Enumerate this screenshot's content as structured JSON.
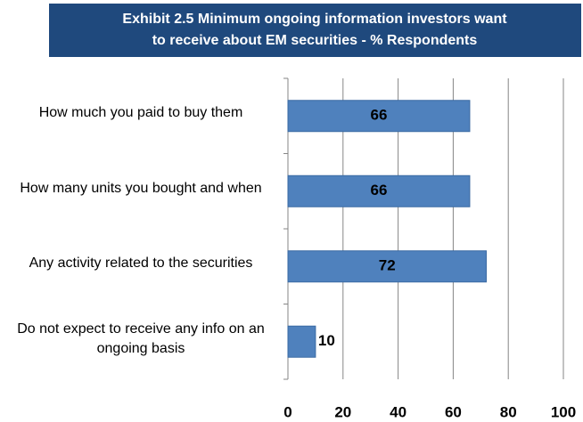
{
  "chart_data": {
    "type": "bar",
    "orientation": "horizontal",
    "title": [
      "Exhibit 2.5  Minimum ongoing information investors want",
      "to receive about EM securities - % Respondents"
    ],
    "categories": [
      "How much you paid to buy them",
      "How many units you bought and when",
      "Any activity related to the securities",
      "Do not expect to receive any info on an ongoing basis"
    ],
    "values": [
      66,
      66,
      72,
      10
    ],
    "color": "#4f81bd",
    "xlim": [
      0,
      100
    ],
    "xticks": [
      0,
      20,
      40,
      60,
      80,
      100
    ],
    "grid": true
  }
}
